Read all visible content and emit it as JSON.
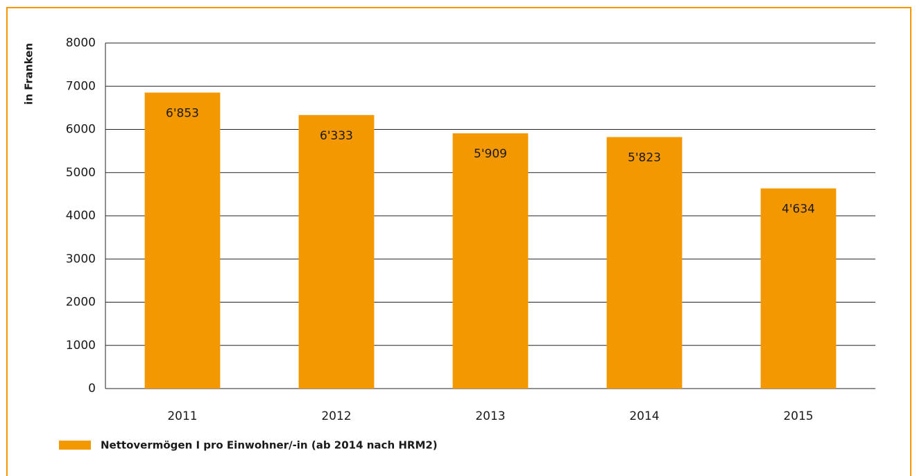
{
  "chart_data": {
    "type": "bar",
    "y_label": "in Franken",
    "categories": [
      "2011",
      "2012",
      "2013",
      "2014",
      "2015"
    ],
    "series": [
      {
        "name": "Nettovermögen I pro Einwohner/-in (ab 2014 nach HRM2)",
        "color": "#f39800",
        "values": [
          6853,
          6333,
          5909,
          5823,
          4634
        ],
        "value_labels": [
          "6'853",
          "6'333",
          "5'909",
          "5'823",
          "4'634"
        ]
      }
    ],
    "ylim": [
      0,
      8000
    ],
    "yticks": [
      0,
      1000,
      2000,
      3000,
      4000,
      5000,
      6000,
      7000,
      8000
    ],
    "grid": true
  }
}
